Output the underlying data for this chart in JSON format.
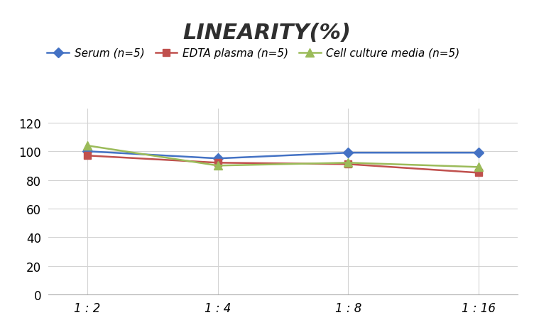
{
  "title": "LINEARITY(%)",
  "x_labels": [
    "1 : 2",
    "1 : 4",
    "1 : 8",
    "1 : 16"
  ],
  "x_positions": [
    0,
    1,
    2,
    3
  ],
  "series": [
    {
      "label": "Serum (n=5)",
      "values": [
        100,
        95,
        99,
        99
      ],
      "color": "#4472C4",
      "marker": "D",
      "marker_size": 7,
      "linewidth": 1.8
    },
    {
      "label": "EDTA plasma (n=5)",
      "values": [
        97,
        92,
        91,
        85
      ],
      "color": "#C0504D",
      "marker": "s",
      "marker_size": 7,
      "linewidth": 1.8
    },
    {
      "label": "Cell culture media (n=5)",
      "values": [
        104,
        90,
        92,
        89
      ],
      "color": "#9BBB59",
      "marker": "^",
      "marker_size": 9,
      "linewidth": 1.8
    }
  ],
  "ylim": [
    0,
    130
  ],
  "yticks": [
    0,
    20,
    40,
    60,
    80,
    100,
    120
  ],
  "background_color": "#ffffff",
  "grid_color": "#d3d3d3",
  "title_fontsize": 22,
  "legend_fontsize": 11,
  "tick_fontsize": 12
}
